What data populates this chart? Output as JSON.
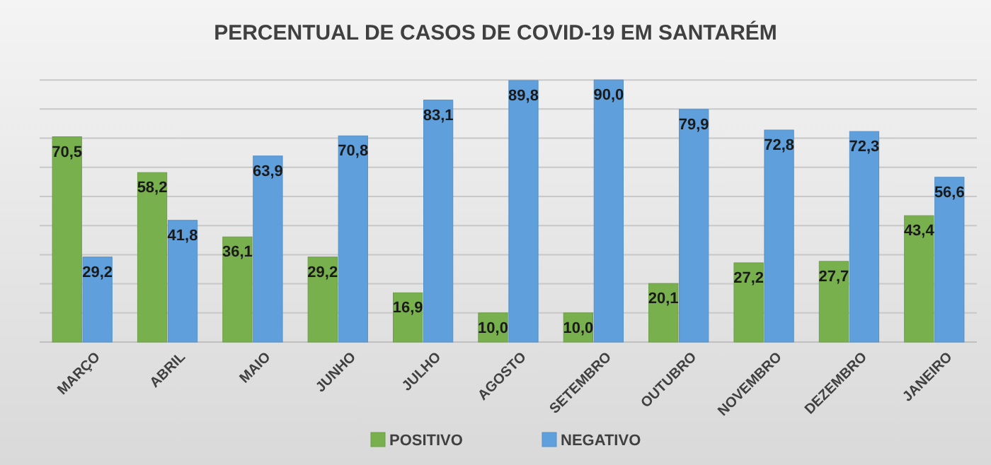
{
  "chart_data": {
    "type": "bar",
    "title": "PERCENTUAL DE CASOS DE COVID-19 EM SANTARÉM",
    "categories": [
      "MARÇO",
      "ABRIL",
      "MAIO",
      "JUNHO",
      "JULHO",
      "AGOSTO",
      "SETEMBRO",
      "OUTUBRO",
      "NOVEMBRO",
      "DEZEMBRO",
      "JANEIRO"
    ],
    "series": [
      {
        "name": "POSITIVO",
        "color": "#78b04e",
        "values": [
          70.5,
          58.2,
          36.1,
          29.2,
          16.9,
          10.0,
          10.0,
          20.1,
          27.2,
          27.7,
          43.4
        ],
        "value_labels": [
          "70,5",
          "58,2",
          "36,1",
          "29,2",
          "16,9",
          "10,0",
          "10,0",
          "20,1",
          "27,2",
          "27,7",
          "43,4"
        ]
      },
      {
        "name": "NEGATIVO",
        "color": "#5fa0dc",
        "values": [
          29.2,
          41.8,
          63.9,
          70.8,
          83.1,
          89.8,
          90.0,
          79.9,
          72.8,
          72.3,
          56.6
        ],
        "value_labels": [
          "29,2",
          "41,8",
          "63,9",
          "70,8",
          "83,1",
          "89,8",
          "90,0",
          "79,9",
          "72,8",
          "72,3",
          "56,6"
        ]
      }
    ],
    "tick_labels": "x",
    "grid": "y",
    "legend": "bottom"
  }
}
